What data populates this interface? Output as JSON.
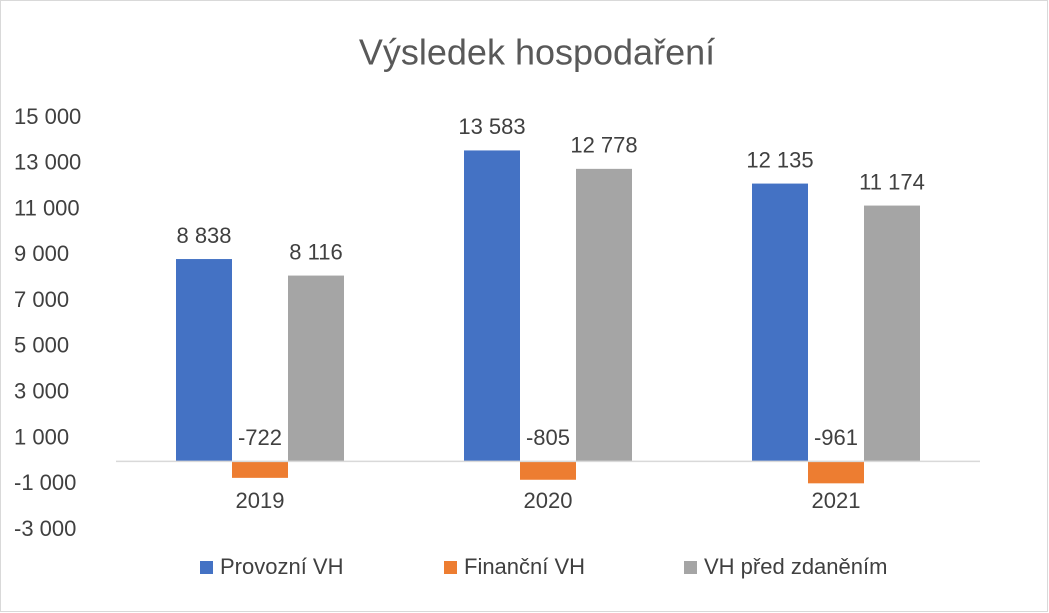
{
  "chart_data": {
    "type": "bar",
    "title": "Výsledek hospodaření",
    "categories": [
      "2019",
      "2020",
      "2021"
    ],
    "series": [
      {
        "name": "Provozní VH",
        "color": "#4472c4",
        "values": [
          8838,
          13583,
          12135
        ],
        "value_labels": [
          "8 838",
          "13 583",
          "12 135"
        ]
      },
      {
        "name": "Finanční VH",
        "color": "#ed7d31",
        "values": [
          -722,
          -805,
          -961
        ]
      },
      {
        "name": "VH před zdaněním",
        "color": "#a5a5a5",
        "values": [
          8116,
          12778,
          11174
        ],
        "value_labels": [
          "8 116",
          "12 778",
          "11 174"
        ]
      }
    ],
    "ylim": [
      -3000,
      15000
    ],
    "yticks": [
      {
        "value": -3000,
        "label": "-3 000"
      },
      {
        "value": -1000,
        "label": "-1 000"
      },
      {
        "value": 1000,
        "label": "1 000"
      },
      {
        "value": 3000,
        "label": "3 000"
      },
      {
        "value": 5000,
        "label": "5 000"
      },
      {
        "value": 7000,
        "label": "7 000"
      },
      {
        "value": 9000,
        "label": "9 000"
      },
      {
        "value": 11000,
        "label": "11 000"
      },
      {
        "value": 13000,
        "label": "13 000"
      },
      {
        "value": 15000,
        "label": "15 000"
      }
    ],
    "grid": false,
    "legend": "bottom"
  }
}
